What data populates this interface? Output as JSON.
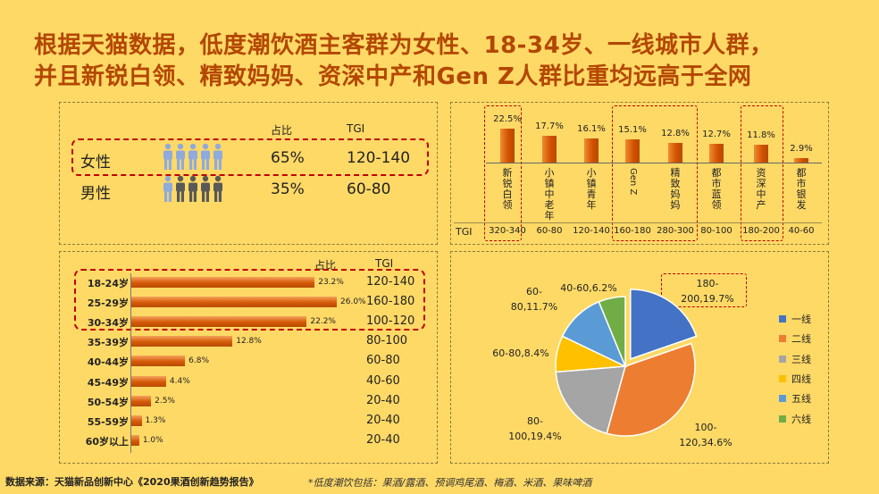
{
  "title": {
    "line1": "根据天猫数据，低度潮饮酒主客群为女性、18-34岁、一线城市人群，",
    "line2": "并且新锐白领、精致妈妈、资深中产和Gen Z人群比重均远高于全网"
  },
  "gender": {
    "header_share": "占比",
    "header_tgi": "TGI",
    "rows": [
      {
        "label": "女性",
        "share": "65%",
        "tgi": "120-140",
        "icon": "female-person-icon",
        "color": "#8FAADC"
      },
      {
        "label": "男性",
        "share": "35%",
        "tgi": "60-80",
        "icon": "male-person-icon",
        "color": "#595959"
      }
    ]
  },
  "age": {
    "header_share": "占比",
    "header_tgi": "TGI"
  },
  "chart_data": [
    {
      "type": "bar",
      "orientation": "horizontal",
      "categories": [
        "18-24岁",
        "25-29岁",
        "30-34岁",
        "35-39岁",
        "40-44岁",
        "45-49岁",
        "50-54岁",
        "55-59岁",
        "60岁以上"
      ],
      "values": [
        23.2,
        26.0,
        22.2,
        12.8,
        6.8,
        4.4,
        2.5,
        1.3,
        1.0
      ],
      "value_labels": [
        "23.2%",
        "26.0%",
        "22.2%",
        "12.8%",
        "6.8%",
        "4.4%",
        "2.5%",
        "1.3%",
        "1.0%"
      ],
      "tgi": [
        "120-140",
        "160-180",
        "100-120",
        "80-100",
        "60-80",
        "40-60",
        "20-40",
        "20-40",
        "20-40"
      ],
      "xlim": [
        0,
        30
      ]
    },
    {
      "type": "bar",
      "orientation": "vertical",
      "categories": [
        "新锐白领",
        "小镇中老年",
        "小镇青年",
        "Gen Z",
        "精致妈妈",
        "都市蓝领",
        "资深中产",
        "都市银发"
      ],
      "values": [
        22.5,
        17.7,
        16.1,
        15.1,
        12.8,
        12.7,
        11.8,
        2.9
      ],
      "value_labels": [
        "22.5%",
        "17.7%",
        "16.1%",
        "15.1%",
        "12.8%",
        "12.7%",
        "11.8%",
        "2.9%"
      ],
      "tgi_label": "TGI",
      "tgi": [
        "320-340",
        "60-80",
        "120-140",
        "160-180",
        "280-300",
        "80-100",
        "180-200",
        "40-60"
      ],
      "ylim": [
        0,
        25
      ]
    },
    {
      "type": "pie",
      "slices": [
        {
          "name": "一线",
          "value": 19.7,
          "tgi": "180-200",
          "label": "180-200,19.7%",
          "color": "#4472C4"
        },
        {
          "name": "二线",
          "value": 34.6,
          "tgi": "100-120",
          "label": "100-120,34.6%",
          "color": "#ED7D31"
        },
        {
          "name": "三线",
          "value": 19.4,
          "tgi": "80-100",
          "label": "80-100,19.4%",
          "color": "#A5A5A5"
        },
        {
          "name": "四线",
          "value": 8.4,
          "tgi": "60-80",
          "label": "60-80,8.4%",
          "color": "#FFC000"
        },
        {
          "name": "五线",
          "value": 11.7,
          "tgi": "60-80",
          "label": "60-80,11.7%",
          "color": "#5B9BD5"
        },
        {
          "name": "六线",
          "value": 6.2,
          "tgi": "40-60",
          "label": "40-60,6.2%",
          "color": "#70AD47"
        }
      ],
      "legend_position": "right"
    }
  ],
  "footer": {
    "source": "数据来源：天猫新品创新中心《2020果酒创新趋势报告》",
    "note": "*低度潮饮包括：果酒/露酒、预调鸡尾酒、梅酒、米酒、果味啤酒"
  }
}
